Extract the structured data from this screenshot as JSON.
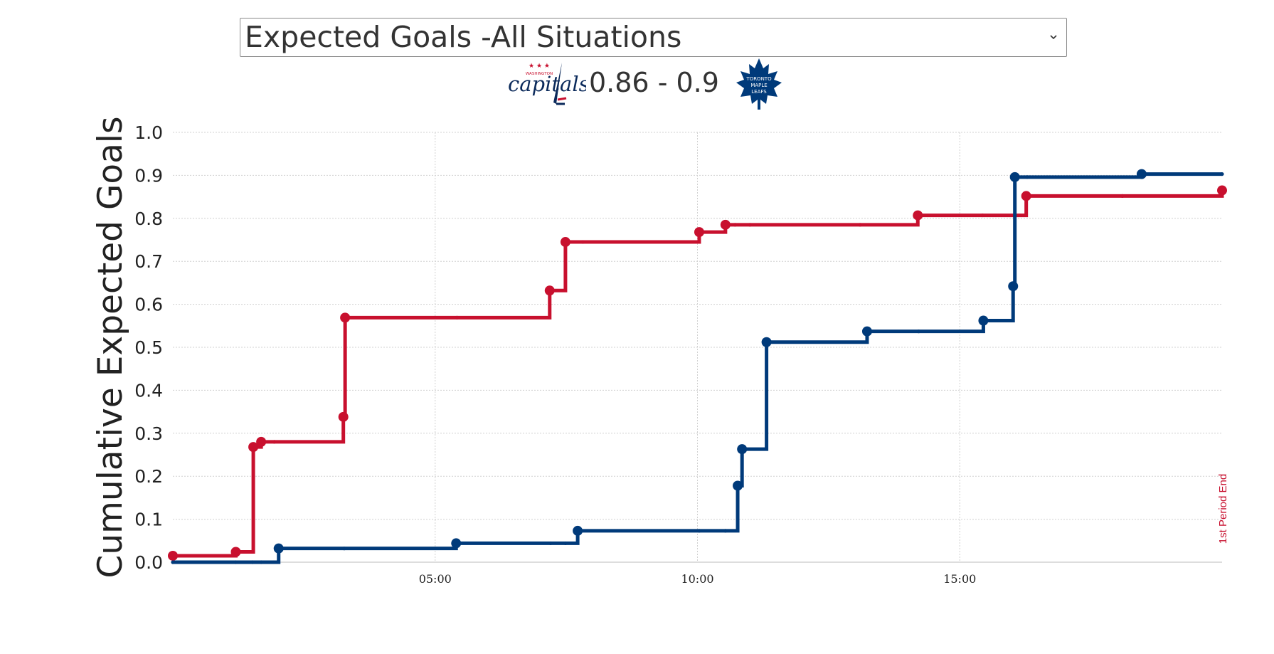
{
  "dropdown": {
    "selected": "Expected Goals -All Situations",
    "icon": "chevron-down-icon"
  },
  "scoreboard": {
    "away_team": "capitals",
    "away_logo_text": "WASHINGTON",
    "home_logo_lines": [
      "TORONTO",
      "MAPLE",
      "LEAFS"
    ],
    "score_text": "0.86 - 0.9"
  },
  "colors": {
    "capitals": "#c8102e",
    "leafs": "#003a7a",
    "grid": "#d0d0d0"
  },
  "chart_data": {
    "type": "line",
    "step": true,
    "ylabel": "Cumulative Expected Goals",
    "xlabel": "",
    "ylim": [
      0,
      1.0
    ],
    "xlim_seconds": [
      0,
      1200
    ],
    "yticks": [
      "0.0",
      "0.1",
      "0.2",
      "0.3",
      "0.4",
      "0.5",
      "0.6",
      "0.7",
      "0.8",
      "0.9",
      "1.0"
    ],
    "yticks_values": [
      0,
      0.1,
      0.2,
      0.3,
      0.4,
      0.5,
      0.6,
      0.7,
      0.8,
      0.9,
      1.0
    ],
    "xticks": [
      {
        "label": "05:00",
        "seconds": 300
      },
      {
        "label": "10:00",
        "seconds": 600
      },
      {
        "label": "15:00",
        "seconds": 900
      }
    ],
    "grid": true,
    "annotation": {
      "text": "1st Period End",
      "seconds": 1200
    },
    "series": [
      {
        "team": "capitals",
        "points": [
          {
            "seconds": 0,
            "xg": 0.015
          },
          {
            "seconds": 72,
            "xg": 0.024
          },
          {
            "seconds": 92,
            "xg": 0.268
          },
          {
            "seconds": 101,
            "xg": 0.28
          },
          {
            "seconds": 195,
            "xg": 0.338
          },
          {
            "seconds": 197,
            "xg": 0.569
          },
          {
            "seconds": 431,
            "xg": 0.632
          },
          {
            "seconds": 449,
            "xg": 0.745
          },
          {
            "seconds": 602,
            "xg": 0.768
          },
          {
            "seconds": 632,
            "xg": 0.785
          },
          {
            "seconds": 852,
            "xg": 0.807
          },
          {
            "seconds": 976,
            "xg": 0.852
          },
          {
            "seconds": 1200,
            "xg": 0.865
          }
        ],
        "minor_points": [
          {
            "seconds": 116,
            "xg": 0.28
          },
          {
            "seconds": 325,
            "xg": 0.569
          },
          {
            "seconds": 469,
            "xg": 0.745
          },
          {
            "seconds": 643,
            "xg": 0.785
          },
          {
            "seconds": 660,
            "xg": 0.785
          },
          {
            "seconds": 786,
            "xg": 0.785
          },
          {
            "seconds": 926,
            "xg": 0.807
          },
          {
            "seconds": 1086,
            "xg": 0.852
          }
        ]
      },
      {
        "team": "leafs",
        "points": [
          {
            "seconds": 121,
            "xg": 0.032
          },
          {
            "seconds": 324,
            "xg": 0.044
          },
          {
            "seconds": 463,
            "xg": 0.073
          },
          {
            "seconds": 646,
            "xg": 0.178
          },
          {
            "seconds": 651,
            "xg": 0.263
          },
          {
            "seconds": 679,
            "xg": 0.512
          },
          {
            "seconds": 794,
            "xg": 0.537
          },
          {
            "seconds": 927,
            "xg": 0.562
          },
          {
            "seconds": 961,
            "xg": 0.642
          },
          {
            "seconds": 963,
            "xg": 0.896
          },
          {
            "seconds": 1108,
            "xg": 0.903
          }
        ],
        "minor_points": [
          {
            "seconds": 0,
            "xg": 0.0
          },
          {
            "seconds": 72,
            "xg": 0.0
          },
          {
            "seconds": 91,
            "xg": 0.0
          },
          {
            "seconds": 101,
            "xg": 0.0
          },
          {
            "seconds": 196,
            "xg": 0.032
          },
          {
            "seconds": 432,
            "xg": 0.044
          },
          {
            "seconds": 449,
            "xg": 0.044
          },
          {
            "seconds": 602,
            "xg": 0.073
          },
          {
            "seconds": 632,
            "xg": 0.073
          },
          {
            "seconds": 853,
            "xg": 0.537
          },
          {
            "seconds": 977,
            "xg": 0.896
          },
          {
            "seconds": 1200,
            "xg": 0.903
          }
        ]
      }
    ]
  }
}
